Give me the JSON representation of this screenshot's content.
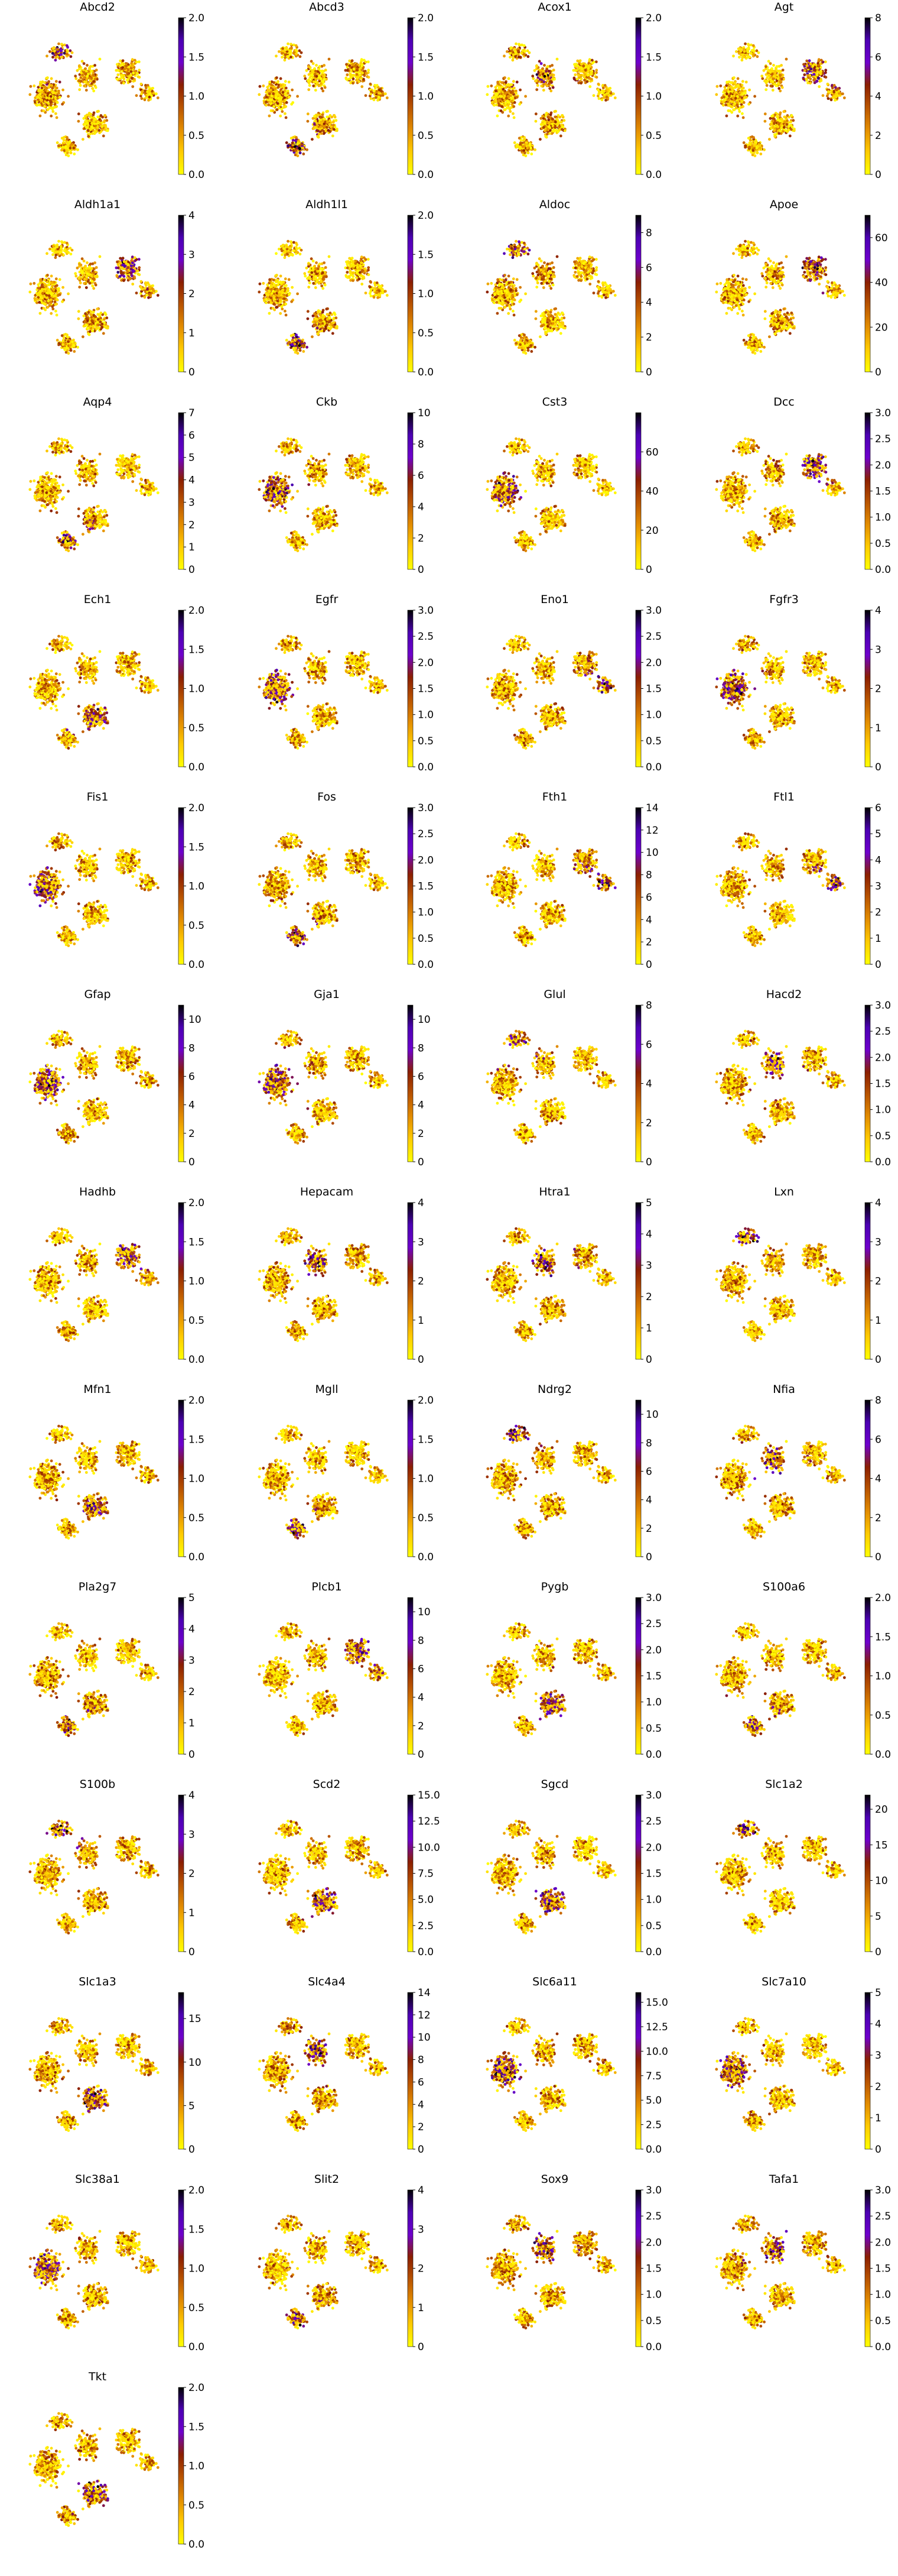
{
  "colorscale": {
    "name": "gnuplot-like (yellow → orange → brown → purple → black)",
    "stops": [
      "#ffff00",
      "#ffcc00",
      "#e38d00",
      "#b95400",
      "#8b1f00",
      "#6e00cc",
      "#4c00b3",
      "#000000"
    ]
  },
  "chart_data": [
    {
      "type": "scatter",
      "title": "Abcd2",
      "colorbar": {
        "min": 0,
        "max": 2.0,
        "ticks": [
          "0.0",
          "0.5",
          "1.0",
          "1.5",
          "2.0"
        ]
      }
    },
    {
      "type": "scatter",
      "title": "Abcd3",
      "colorbar": {
        "min": 0,
        "max": 2.0,
        "ticks": [
          "0.0",
          "0.5",
          "1.0",
          "1.5",
          "2.0"
        ]
      }
    },
    {
      "type": "scatter",
      "title": "Acox1",
      "colorbar": {
        "min": 0,
        "max": 2.0,
        "ticks": [
          "0.0",
          "0.5",
          "1.0",
          "1.5",
          "2.0"
        ]
      }
    },
    {
      "type": "scatter",
      "title": "Agt",
      "colorbar": {
        "min": 0,
        "max": 8,
        "ticks": [
          "0",
          "2",
          "4",
          "6",
          "8"
        ]
      }
    },
    {
      "type": "scatter",
      "title": "Aldh1a1",
      "colorbar": {
        "min": 0,
        "max": 4,
        "ticks": [
          "0",
          "1",
          "2",
          "3",
          "4"
        ]
      }
    },
    {
      "type": "scatter",
      "title": "Aldh1l1",
      "colorbar": {
        "min": 0,
        "max": 2.0,
        "ticks": [
          "0.0",
          "0.5",
          "1.0",
          "1.5",
          "2.0"
        ]
      }
    },
    {
      "type": "scatter",
      "title": "Aldoc",
      "colorbar": {
        "min": 0,
        "max": 9,
        "ticks": [
          "0",
          "2",
          "4",
          "6",
          "8"
        ]
      }
    },
    {
      "type": "scatter",
      "title": "Apoe",
      "colorbar": {
        "min": 0,
        "max": 70,
        "ticks": [
          "0",
          "20",
          "40",
          "60"
        ]
      }
    },
    {
      "type": "scatter",
      "title": "Aqp4",
      "colorbar": {
        "min": 0,
        "max": 7,
        "ticks": [
          "0",
          "1",
          "2",
          "3",
          "4",
          "5",
          "6",
          "7"
        ]
      }
    },
    {
      "type": "scatter",
      "title": "Ckb",
      "colorbar": {
        "min": 0,
        "max": 10,
        "ticks": [
          "0",
          "2",
          "4",
          "6",
          "8",
          "10"
        ]
      }
    },
    {
      "type": "scatter",
      "title": "Cst3",
      "colorbar": {
        "min": 0,
        "max": 80,
        "ticks": [
          "0",
          "20",
          "40",
          "60"
        ]
      }
    },
    {
      "type": "scatter",
      "title": "Dcc",
      "colorbar": {
        "min": 0,
        "max": 3.0,
        "ticks": [
          "0.0",
          "0.5",
          "1.0",
          "1.5",
          "2.0",
          "2.5",
          "3.0"
        ]
      }
    },
    {
      "type": "scatter",
      "title": "Ech1",
      "colorbar": {
        "min": 0,
        "max": 2.0,
        "ticks": [
          "0.0",
          "0.5",
          "1.0",
          "1.5",
          "2.0"
        ]
      }
    },
    {
      "type": "scatter",
      "title": "Egfr",
      "colorbar": {
        "min": 0,
        "max": 3.0,
        "ticks": [
          "0.0",
          "0.5",
          "1.0",
          "1.5",
          "2.0",
          "2.5",
          "3.0"
        ]
      }
    },
    {
      "type": "scatter",
      "title": "Eno1",
      "colorbar": {
        "min": 0,
        "max": 3.0,
        "ticks": [
          "0.0",
          "0.5",
          "1.0",
          "1.5",
          "2.0",
          "2.5",
          "3.0"
        ]
      }
    },
    {
      "type": "scatter",
      "title": "Fgfr3",
      "colorbar": {
        "min": 0,
        "max": 4,
        "ticks": [
          "0",
          "1",
          "2",
          "3",
          "4"
        ]
      }
    },
    {
      "type": "scatter",
      "title": "Fis1",
      "colorbar": {
        "min": 0,
        "max": 2.0,
        "ticks": [
          "0.0",
          "0.5",
          "1.0",
          "1.5",
          "2.0"
        ]
      }
    },
    {
      "type": "scatter",
      "title": "Fos",
      "colorbar": {
        "min": 0,
        "max": 3.0,
        "ticks": [
          "0.0",
          "0.5",
          "1.0",
          "1.5",
          "2.0",
          "2.5",
          "3.0"
        ]
      }
    },
    {
      "type": "scatter",
      "title": "Fth1",
      "colorbar": {
        "min": 0,
        "max": 14,
        "ticks": [
          "0",
          "2",
          "4",
          "6",
          "8",
          "10",
          "12",
          "14"
        ]
      }
    },
    {
      "type": "scatter",
      "title": "Ftl1",
      "colorbar": {
        "min": 0,
        "max": 6,
        "ticks": [
          "0",
          "1",
          "2",
          "3",
          "4",
          "5",
          "6"
        ]
      }
    },
    {
      "type": "scatter",
      "title": "Gfap",
      "colorbar": {
        "min": 0,
        "max": 11,
        "ticks": [
          "0",
          "2",
          "4",
          "6",
          "8",
          "10"
        ]
      }
    },
    {
      "type": "scatter",
      "title": "Gja1",
      "colorbar": {
        "min": 0,
        "max": 11,
        "ticks": [
          "0",
          "2",
          "4",
          "6",
          "8",
          "10"
        ]
      }
    },
    {
      "type": "scatter",
      "title": "Glul",
      "colorbar": {
        "min": 0,
        "max": 8,
        "ticks": [
          "0",
          "2",
          "4",
          "6",
          "8"
        ]
      }
    },
    {
      "type": "scatter",
      "title": "Hacd2",
      "colorbar": {
        "min": 0,
        "max": 3.0,
        "ticks": [
          "0.0",
          "0.5",
          "1.0",
          "1.5",
          "2.0",
          "2.5",
          "3.0"
        ]
      }
    },
    {
      "type": "scatter",
      "title": "Hadhb",
      "colorbar": {
        "min": 0,
        "max": 2.0,
        "ticks": [
          "0.0",
          "0.5",
          "1.0",
          "1.5",
          "2.0"
        ]
      }
    },
    {
      "type": "scatter",
      "title": "Hepacam",
      "colorbar": {
        "min": 0,
        "max": 4,
        "ticks": [
          "0",
          "1",
          "2",
          "3",
          "4"
        ]
      }
    },
    {
      "type": "scatter",
      "title": "Htra1",
      "colorbar": {
        "min": 0,
        "max": 5,
        "ticks": [
          "0",
          "1",
          "2",
          "3",
          "4",
          "5"
        ]
      }
    },
    {
      "type": "scatter",
      "title": "Lxn",
      "colorbar": {
        "min": 0,
        "max": 4,
        "ticks": [
          "0",
          "1",
          "2",
          "3",
          "4"
        ]
      }
    },
    {
      "type": "scatter",
      "title": "Mfn1",
      "colorbar": {
        "min": 0,
        "max": 2.0,
        "ticks": [
          "0.0",
          "0.5",
          "1.0",
          "1.5",
          "2.0"
        ]
      }
    },
    {
      "type": "scatter",
      "title": "Mgll",
      "colorbar": {
        "min": 0,
        "max": 2.0,
        "ticks": [
          "0.0",
          "0.5",
          "1.0",
          "1.5",
          "2.0"
        ]
      }
    },
    {
      "type": "scatter",
      "title": "Ndrg2",
      "colorbar": {
        "min": 0,
        "max": 11,
        "ticks": [
          "0",
          "2",
          "4",
          "6",
          "8",
          "10"
        ]
      }
    },
    {
      "type": "scatter",
      "title": "Nfia",
      "colorbar": {
        "min": 0,
        "max": 8,
        "ticks": [
          "0",
          "2",
          "4",
          "6",
          "8"
        ]
      }
    },
    {
      "type": "scatter",
      "title": "Pla2g7",
      "colorbar": {
        "min": 0,
        "max": 5,
        "ticks": [
          "0",
          "1",
          "2",
          "3",
          "4",
          "5"
        ]
      }
    },
    {
      "type": "scatter",
      "title": "Plcb1",
      "colorbar": {
        "min": 0,
        "max": 11,
        "ticks": [
          "0",
          "2",
          "4",
          "6",
          "8",
          "10"
        ]
      }
    },
    {
      "type": "scatter",
      "title": "Pygb",
      "colorbar": {
        "min": 0,
        "max": 3.0,
        "ticks": [
          "0.0",
          "0.5",
          "1.0",
          "1.5",
          "2.0",
          "2.5",
          "3.0"
        ]
      }
    },
    {
      "type": "scatter",
      "title": "S100a6",
      "colorbar": {
        "min": 0,
        "max": 2.0,
        "ticks": [
          "0.0",
          "0.5",
          "1.0",
          "1.5",
          "2.0"
        ]
      }
    },
    {
      "type": "scatter",
      "title": "S100b",
      "colorbar": {
        "min": 0,
        "max": 4,
        "ticks": [
          "0",
          "1",
          "2",
          "3",
          "4"
        ]
      }
    },
    {
      "type": "scatter",
      "title": "Scd2",
      "colorbar": {
        "min": 0,
        "max": 15.0,
        "ticks": [
          "0.0",
          "2.5",
          "5.0",
          "7.5",
          "10.0",
          "12.5",
          "15.0"
        ]
      }
    },
    {
      "type": "scatter",
      "title": "Sgcd",
      "colorbar": {
        "min": 0,
        "max": 3.0,
        "ticks": [
          "0.0",
          "0.5",
          "1.0",
          "1.5",
          "2.0",
          "2.5",
          "3.0"
        ]
      }
    },
    {
      "type": "scatter",
      "title": "Slc1a2",
      "colorbar": {
        "min": 0,
        "max": 22,
        "ticks": [
          "0",
          "5",
          "10",
          "15",
          "20"
        ]
      }
    },
    {
      "type": "scatter",
      "title": "Slc1a3",
      "colorbar": {
        "min": 0,
        "max": 18,
        "ticks": [
          "0",
          "5",
          "10",
          "15"
        ]
      }
    },
    {
      "type": "scatter",
      "title": "Slc4a4",
      "colorbar": {
        "min": 0,
        "max": 14,
        "ticks": [
          "0",
          "2",
          "4",
          "6",
          "8",
          "10",
          "12",
          "14"
        ]
      }
    },
    {
      "type": "scatter",
      "title": "Slc6a11",
      "colorbar": {
        "min": 0,
        "max": 16,
        "ticks": [
          "0.0",
          "2.5",
          "5.0",
          "7.5",
          "10.0",
          "12.5",
          "15.0"
        ]
      }
    },
    {
      "type": "scatter",
      "title": "Slc7a10",
      "colorbar": {
        "min": 0,
        "max": 5,
        "ticks": [
          "0",
          "1",
          "2",
          "3",
          "4",
          "5"
        ]
      }
    },
    {
      "type": "scatter",
      "title": "Slc38a1",
      "colorbar": {
        "min": 0,
        "max": 2.0,
        "ticks": [
          "0.0",
          "0.5",
          "1.0",
          "1.5",
          "2.0"
        ]
      }
    },
    {
      "type": "scatter",
      "title": "Slit2",
      "colorbar": {
        "min": 0,
        "max": 4,
        "ticks": [
          "0",
          "1",
          "2",
          "3",
          "4"
        ]
      }
    },
    {
      "type": "scatter",
      "title": "Sox9",
      "colorbar": {
        "min": 0,
        "max": 3.0,
        "ticks": [
          "0.0",
          "0.5",
          "1.0",
          "1.5",
          "2.0",
          "2.5",
          "3.0"
        ]
      }
    },
    {
      "type": "scatter",
      "title": "Tafa1",
      "colorbar": {
        "min": 0,
        "max": 3.0,
        "ticks": [
          "0.0",
          "0.5",
          "1.0",
          "1.5",
          "2.0",
          "2.5",
          "3.0"
        ]
      }
    },
    {
      "type": "scatter",
      "title": "Tkt",
      "colorbar": {
        "min": 0,
        "max": 2.0,
        "ticks": [
          "0.0",
          "0.5",
          "1.0",
          "1.5",
          "2.0"
        ]
      }
    }
  ]
}
